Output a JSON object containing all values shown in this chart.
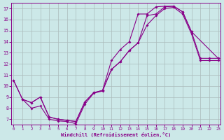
{
  "xlabel": "Windchill (Refroidissement éolien,°C)",
  "bg_color": "#cce8e8",
  "line_color": "#880088",
  "grid_color": "#aabbbb",
  "xlim": [
    0,
    23
  ],
  "ylim": [
    6.5,
    17.5
  ],
  "xticks": [
    0,
    1,
    2,
    3,
    4,
    5,
    6,
    7,
    8,
    9,
    10,
    11,
    12,
    13,
    14,
    15,
    16,
    17,
    18,
    19,
    20,
    21,
    22,
    23
  ],
  "yticks": [
    7,
    8,
    9,
    10,
    11,
    12,
    13,
    14,
    15,
    16,
    17
  ],
  "line1_x": [
    0,
    1,
    2,
    3,
    4,
    5,
    6,
    7,
    8,
    9,
    10,
    11,
    12,
    13,
    14,
    15,
    16,
    17,
    18,
    19,
    20,
    21,
    22,
    23
  ],
  "line1_y": [
    10.5,
    8.8,
    8.0,
    8.2,
    7.0,
    6.85,
    6.8,
    6.6,
    8.35,
    9.35,
    9.55,
    11.5,
    12.2,
    13.2,
    13.9,
    16.35,
    16.5,
    17.15,
    17.2,
    16.7,
    14.9,
    12.5,
    12.5,
    12.5
  ],
  "line2_x": [
    0,
    1,
    2,
    3,
    4,
    5,
    6,
    7,
    8,
    9,
    10,
    11,
    12,
    13,
    14,
    15,
    16,
    17,
    18,
    19,
    20,
    23
  ],
  "line2_y": [
    10.5,
    8.8,
    8.5,
    9.0,
    7.2,
    7.0,
    6.9,
    6.8,
    8.55,
    9.4,
    9.6,
    12.3,
    13.3,
    14.0,
    16.5,
    16.5,
    17.15,
    17.2,
    17.2,
    16.7,
    14.9,
    12.5
  ],
  "line3_x": [
    1,
    2,
    3,
    4,
    5,
    6,
    7,
    8,
    9,
    10,
    11,
    12,
    13,
    14,
    15,
    16,
    17,
    18,
    19,
    20,
    21,
    22,
    23
  ],
  "line3_y": [
    8.8,
    8.5,
    9.0,
    7.2,
    7.0,
    6.9,
    6.8,
    8.55,
    9.4,
    9.6,
    11.5,
    12.2,
    13.2,
    13.9,
    15.5,
    16.35,
    17.0,
    17.1,
    16.5,
    14.7,
    12.3,
    12.3,
    12.3
  ]
}
